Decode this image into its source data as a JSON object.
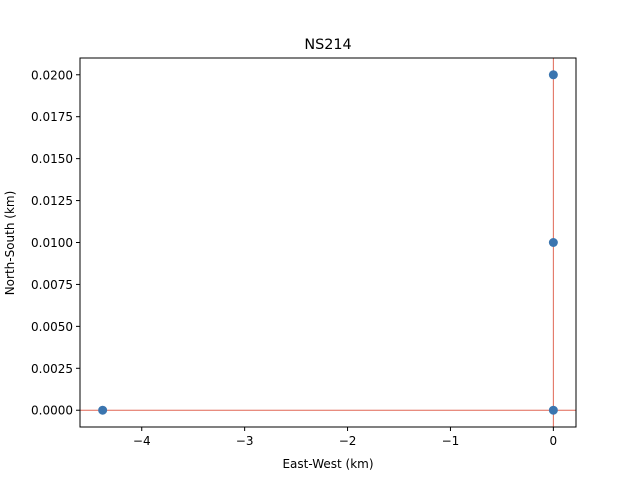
{
  "chart_data": {
    "type": "scatter",
    "title": "NS214",
    "xlabel": "East-West (km)",
    "ylabel": "North-South (km)",
    "xlim": [
      -4.6,
      0.22
    ],
    "ylim": [
      -0.001,
      0.021
    ],
    "x_ticks": [
      -4,
      -3,
      -2,
      -1,
      0
    ],
    "x_tick_labels": [
      "−4",
      "−3",
      "−2",
      "−1",
      "0"
    ],
    "y_ticks": [
      0.0,
      0.0025,
      0.005,
      0.0075,
      0.01,
      0.0125,
      0.015,
      0.0175,
      0.02
    ],
    "y_tick_labels": [
      "0.0000",
      "0.0025",
      "0.0050",
      "0.0075",
      "0.0100",
      "0.0125",
      "0.0150",
      "0.0175",
      "0.0200"
    ],
    "points": [
      {
        "x": -4.38,
        "y": 0.0
      },
      {
        "x": 0.0,
        "y": 0.0
      },
      {
        "x": 0.0,
        "y": 0.01
      },
      {
        "x": 0.0,
        "y": 0.02
      }
    ],
    "reference_lines": {
      "horizontal_y": 0.0,
      "vertical_x": 0.0,
      "color": "#e06655"
    },
    "marker_color": "#3b75af",
    "grid": false,
    "legend": "none"
  }
}
